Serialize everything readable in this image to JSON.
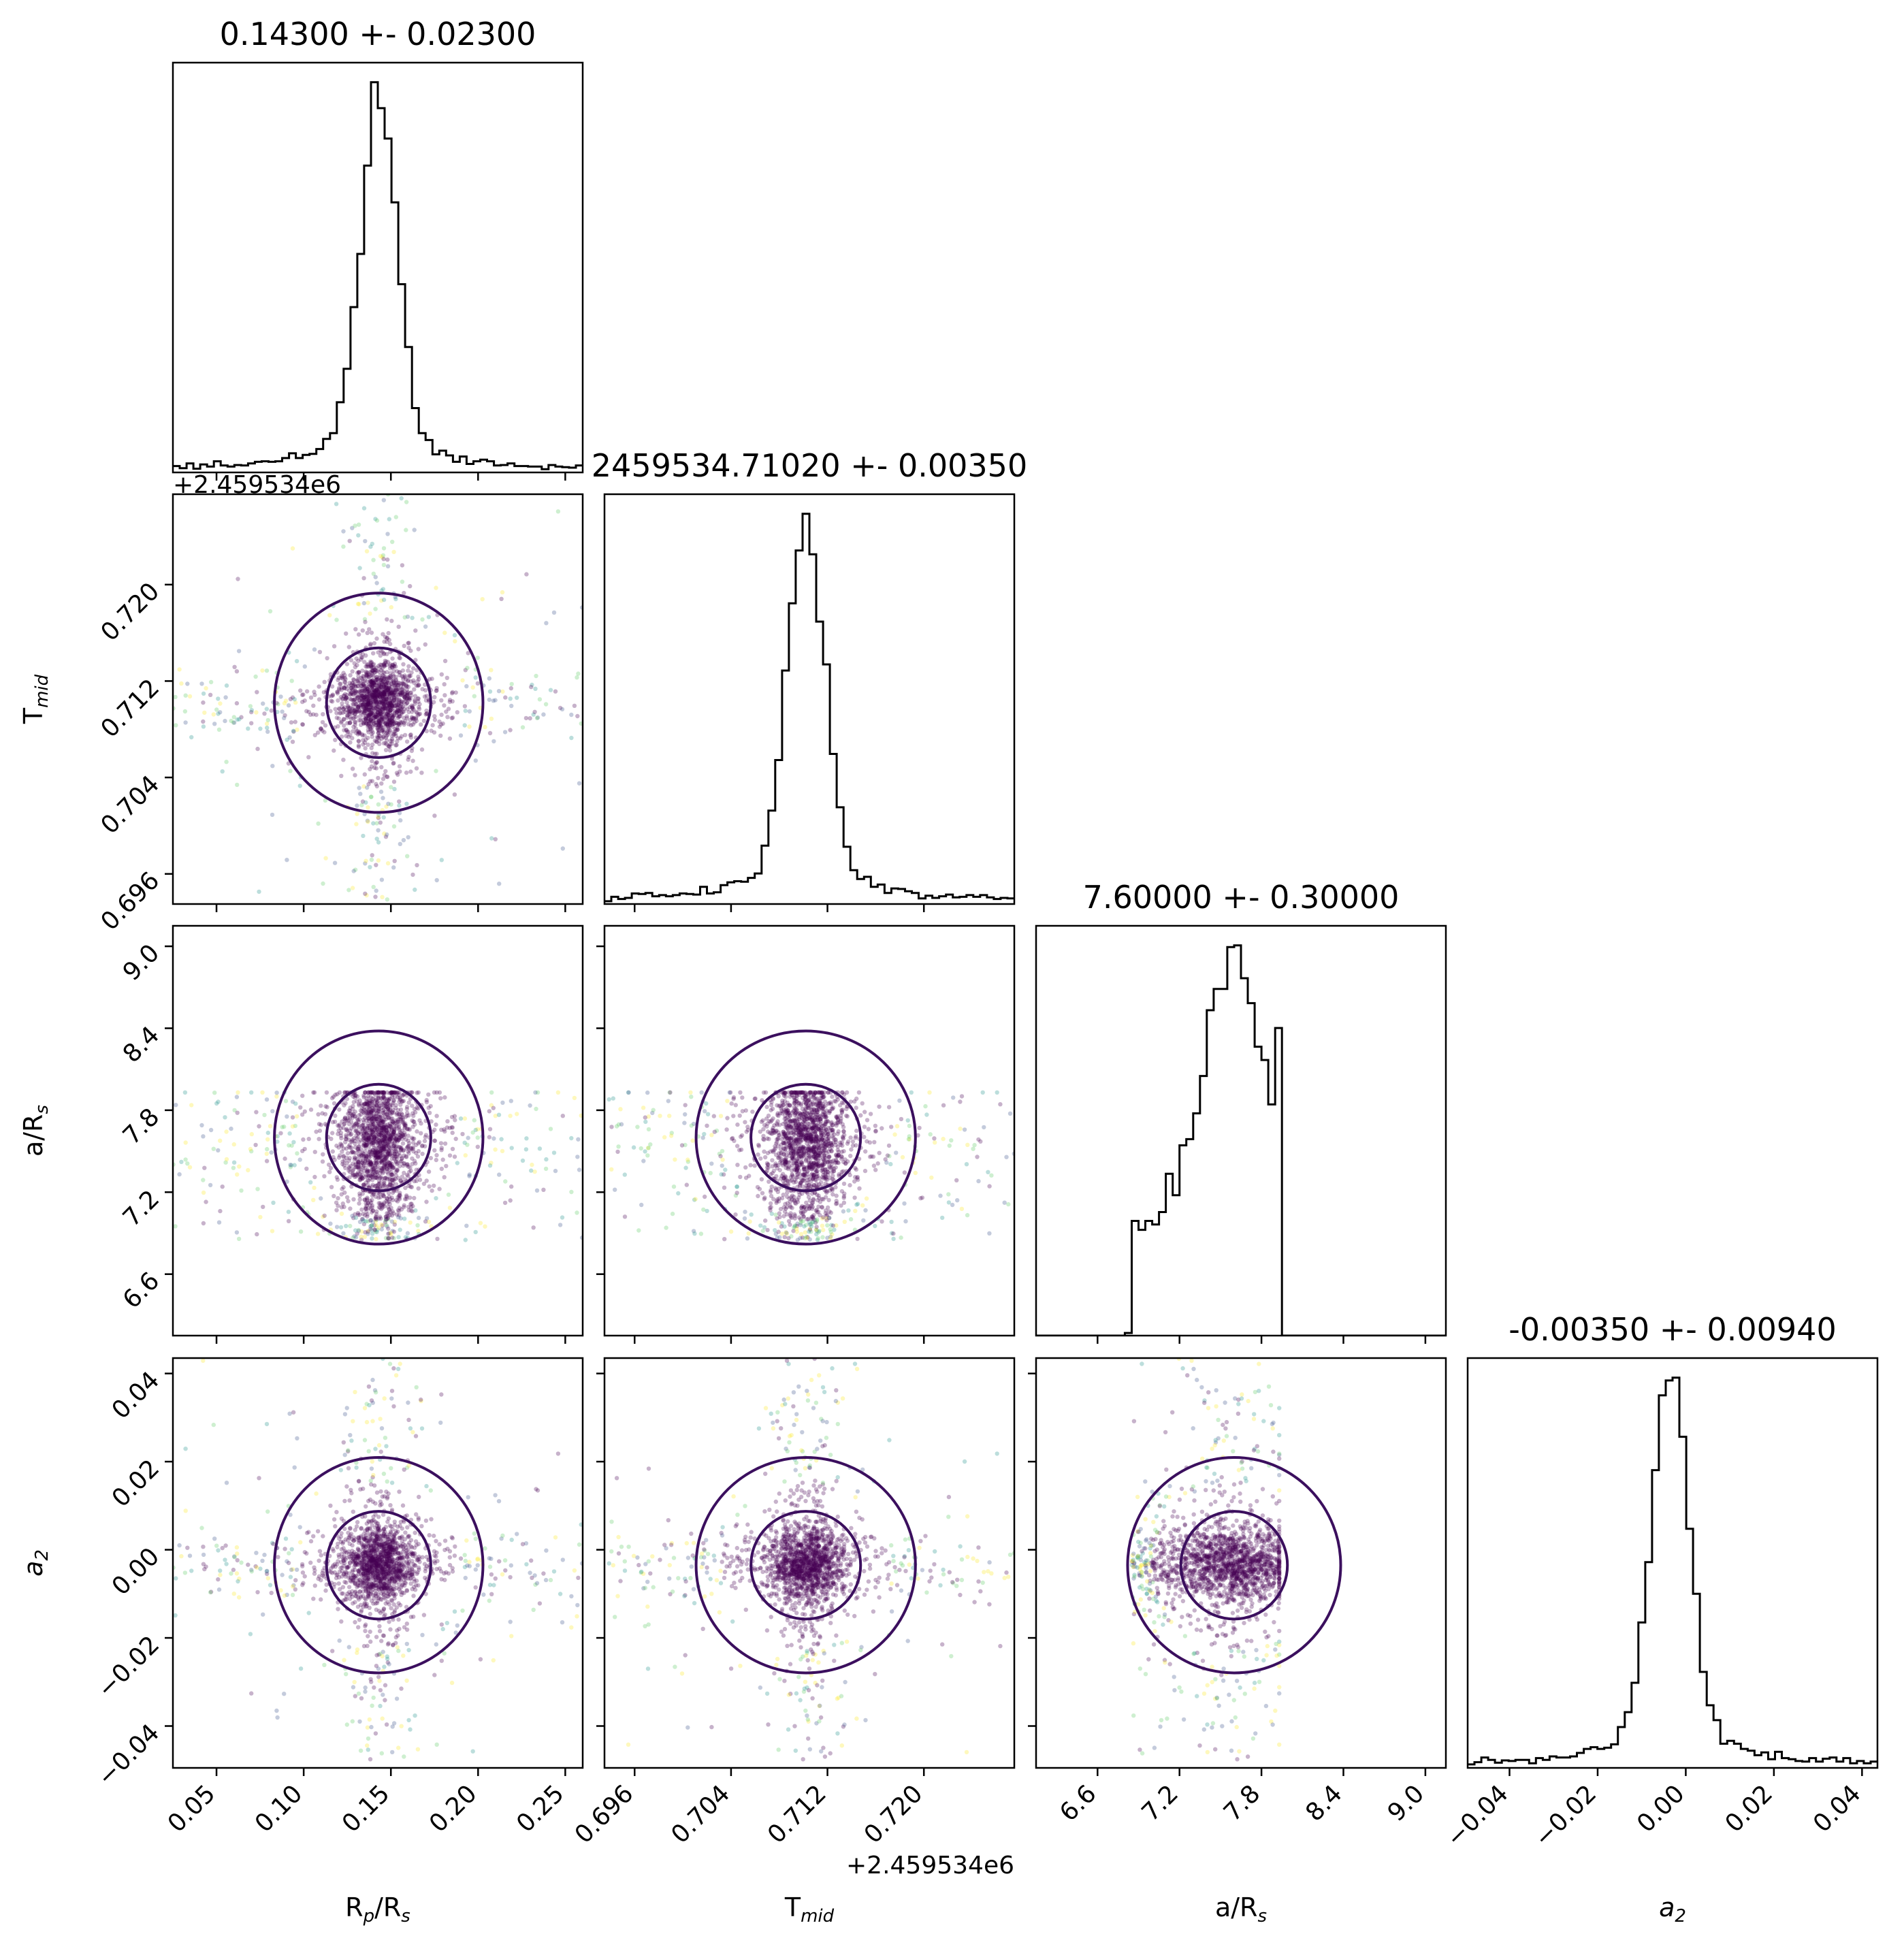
{
  "chart_data": {
    "type": "scatter",
    "subtype": "corner-plot",
    "parameters": [
      {
        "key": "rprs",
        "label": "R",
        "sub": "p",
        "suffix": "/R",
        "suffix_sub": "s",
        "title": "0.14300 +- 0.02300",
        "range": [
          0.025,
          0.26
        ],
        "ticks": [
          "0.05",
          "0.10",
          "0.15",
          "0.20",
          "0.25"
        ],
        "tick_values": [
          0.05,
          0.1,
          0.15,
          0.2,
          0.25
        ],
        "mean": 0.143,
        "sigma": 0.023
      },
      {
        "key": "tmid",
        "label": "T",
        "sub": "mid",
        "suffix": "",
        "suffix_sub": "",
        "title": "2459534.71020 +- 0.00350",
        "offset": "+2.459534e6",
        "range": [
          0.6935,
          0.7275
        ],
        "ticks": [
          "0.696",
          "0.704",
          "0.712",
          "0.720"
        ],
        "tick_values": [
          0.696,
          0.704,
          0.712,
          0.72
        ],
        "mean": 0.7102,
        "sigma": 0.0035
      },
      {
        "key": "ars",
        "label": "a/R",
        "sub": "s",
        "suffix": "",
        "suffix_sub": "",
        "title": "7.60000 +- 0.30000",
        "range": [
          6.15,
          9.15
        ],
        "ticks": [
          "6.6",
          "7.2",
          "7.8",
          "8.4",
          "9.0"
        ],
        "tick_values": [
          6.6,
          7.2,
          7.8,
          8.4,
          9.0
        ],
        "mean": 7.6,
        "sigma": 0.3
      },
      {
        "key": "a2",
        "label": "a",
        "sub": "2",
        "suffix": "",
        "suffix_sub": "",
        "label_italic": true,
        "title": "-0.00350 +- 0.00940",
        "range": [
          -0.0495,
          0.0435
        ],
        "ticks": [
          "−0.04",
          "−0.02",
          "0.00",
          "0.02",
          "0.04"
        ],
        "tick_values": [
          -0.04,
          -0.02,
          0.0,
          0.02,
          0.04
        ],
        "mean": -0.0035,
        "sigma": 0.0094
      }
    ],
    "histogram_bins": 60,
    "scatter_colormap": [
      "#440154",
      "#3b528b",
      "#21918c",
      "#5ec962",
      "#fde725"
    ],
    "contour_color": "#3b0f5e",
    "line_color": "#000000"
  }
}
